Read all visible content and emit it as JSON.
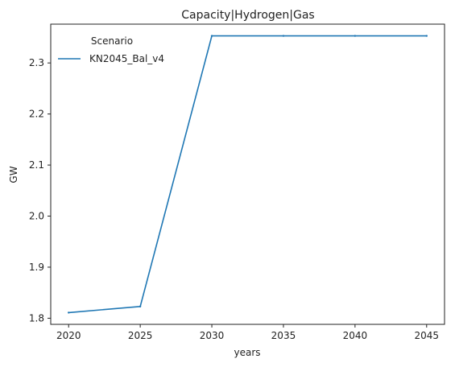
{
  "chart_data": {
    "type": "line",
    "title": "Capacity|Hydrogen|Gas",
    "xlabel": "years",
    "ylabel": "GW",
    "x": [
      2020,
      2025,
      2030,
      2035,
      2040,
      2045
    ],
    "xticks": [
      "2020",
      "2025",
      "2030",
      "2035",
      "2040",
      "2045"
    ],
    "yticks": [
      "1.8",
      "1.9",
      "2.0",
      "2.1",
      "2.2",
      "2.3"
    ],
    "xlim": [
      2018.75,
      2046.25
    ],
    "ylim": [
      1.788,
      2.376
    ],
    "grid": false,
    "legend": {
      "title": "Scenario",
      "placement": "top-left"
    },
    "series": [
      {
        "name": "KN2045_Bal_v4",
        "color": "#1f77b4",
        "x": [
          2020,
          2025,
          2030,
          2035,
          2040,
          2045
        ],
        "values": [
          1.811,
          1.823,
          2.353,
          2.353,
          2.353,
          2.353
        ]
      }
    ]
  }
}
